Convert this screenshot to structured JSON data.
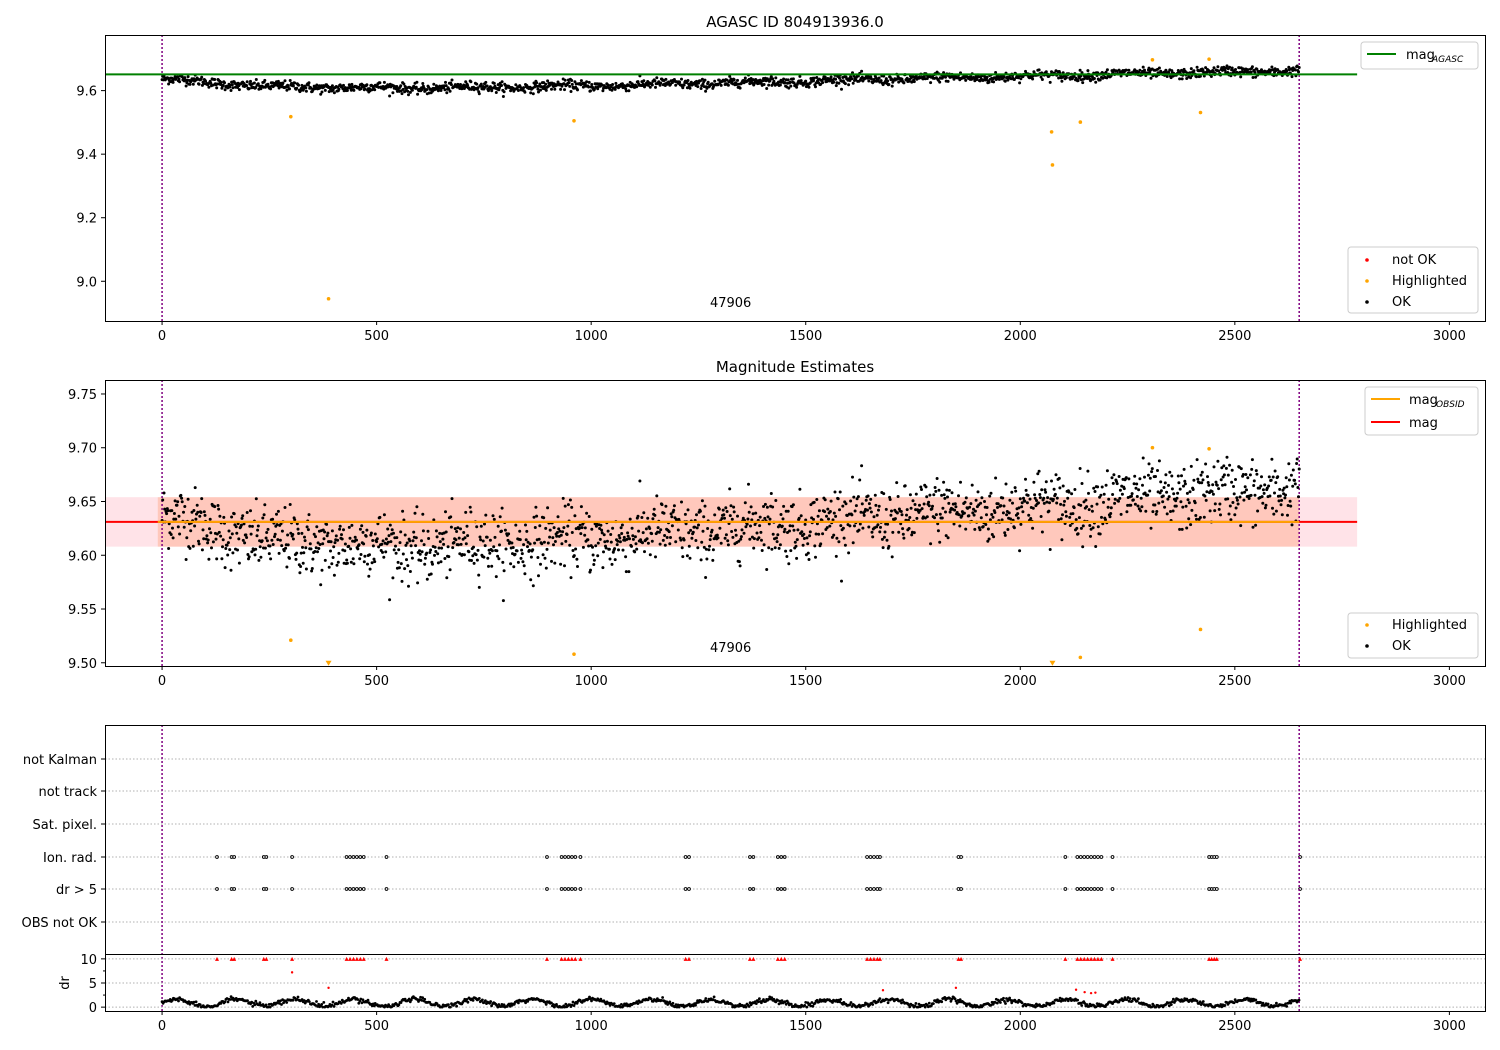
{
  "chart_data": [
    {
      "type": "scatter",
      "title": "AGASC ID 804913936.0",
      "xlim": [
        -133,
        3083
      ],
      "ylim": [
        8.875,
        9.775
      ],
      "xticks": [
        0,
        500,
        1000,
        1500,
        2000,
        2500,
        3000
      ],
      "yticks": [
        9.0,
        9.2,
        9.4,
        9.6
      ],
      "ytick_labels": [
        "9.0",
        "9.2",
        "9.4",
        "9.6"
      ],
      "obsid_annotation": {
        "label": "47906",
        "x": 1325,
        "y": 8.9
      },
      "vlines": [
        0,
        2650
      ],
      "hlines": [
        {
          "name": "mag_AGASC",
          "y": 9.651,
          "x_range": [
            -133,
            2785
          ],
          "color": "#008000"
        }
      ],
      "series": [
        {
          "name": "OK",
          "color": "#000000",
          "model": {
            "x_range": [
              0,
              2650
            ],
            "n": 1750,
            "trend": [
              [
                0,
                9.637
              ],
              [
                250,
                9.612
              ],
              [
                600,
                9.608
              ],
              [
                1000,
                9.615
              ],
              [
                1500,
                9.63
              ],
              [
                2000,
                9.645
              ],
              [
                2650,
                9.663
              ]
            ],
            "scatter": 0.008
          }
        },
        {
          "name": "Highlighted",
          "color": "#ffa500",
          "points": [
            [
              300,
              9.518
            ],
            [
              388,
              8.945
            ],
            [
              960,
              9.505
            ],
            [
              2073,
              9.47
            ],
            [
              2075,
              9.366
            ],
            [
              2140,
              9.501
            ],
            [
              2308,
              9.697
            ],
            [
              2420,
              9.531
            ],
            [
              2440,
              9.699
            ]
          ]
        },
        {
          "name": "not OK",
          "color": "#ff0000",
          "points": []
        }
      ],
      "legend_upper": {
        "position": "upper-right",
        "entries": [
          {
            "label": "mag",
            "sub": "AGASC",
            "color": "#008000"
          }
        ]
      },
      "legend_lower": {
        "position": "lower-right",
        "entries": [
          {
            "label": "not OK",
            "color": "#ff0000"
          },
          {
            "label": "Highlighted",
            "color": "#ffa500"
          },
          {
            "label": "OK",
            "color": "#000000"
          }
        ]
      }
    },
    {
      "type": "scatter",
      "title": "Magnitude Estimates",
      "xlim": [
        -133,
        3083
      ],
      "ylim": [
        9.497,
        9.763
      ],
      "xticks": [
        0,
        500,
        1000,
        1500,
        2000,
        2500,
        3000
      ],
      "yticks": [
        9.5,
        9.55,
        9.6,
        9.65,
        9.7,
        9.75
      ],
      "ytick_labels": [
        "9.50",
        "9.55",
        "9.60",
        "9.65",
        "9.70",
        "9.75"
      ],
      "obsid_annotation": {
        "label": "47906",
        "x": 1325,
        "y": 9.508
      },
      "vlines": [
        0,
        2650
      ],
      "hlines": [
        {
          "name": "mag",
          "y": 9.631,
          "x_range": [
            -133,
            2785
          ],
          "color": "#ff0000"
        },
        {
          "name": "mag_OBSID",
          "y": 9.631,
          "x_range": [
            -10,
            2650
          ],
          "color": "#ffa500"
        }
      ],
      "bands": [
        {
          "y_range": [
            9.608,
            9.654
          ],
          "x_range": [
            -133,
            2785
          ],
          "color": "#ffc0cb",
          "opacity": 0.45
        },
        {
          "y_range": [
            9.608,
            9.654
          ],
          "x_range": [
            -10,
            2650
          ],
          "color": "#ffa07a",
          "opacity": 0.4
        }
      ],
      "series": [
        {
          "name": "OK",
          "color": "#000000",
          "model": {
            "x_range": [
              0,
              2650
            ],
            "n": 1750,
            "trend": [
              [
                0,
                9.637
              ],
              [
                250,
                9.612
              ],
              [
                600,
                9.608
              ],
              [
                1000,
                9.615
              ],
              [
                1500,
                9.63
              ],
              [
                2000,
                9.645
              ],
              [
                2650,
                9.663
              ]
            ],
            "scatter": 0.015
          }
        },
        {
          "name": "Highlighted",
          "color": "#ffa500",
          "points": [
            [
              300,
              9.521
            ],
            [
              960,
              9.508
            ],
            [
              2140,
              9.505
            ],
            [
              2308,
              9.7
            ],
            [
              2420,
              9.531
            ],
            [
              2440,
              9.699
            ]
          ]
        },
        {
          "name": "Highlighted (below range)",
          "color": "#ffa500",
          "marker": "triangle-down",
          "points": [
            [
              388,
              9.5
            ],
            [
              2075,
              9.5
            ]
          ]
        }
      ],
      "legend_upper": {
        "position": "upper-right",
        "entries": [
          {
            "label": "mag",
            "sub": "OBSID",
            "color": "#ffa500"
          },
          {
            "label": "mag",
            "color": "#ff0000"
          }
        ]
      },
      "legend_lower": {
        "position": "lower-right",
        "entries": [
          {
            "label": "Highlighted",
            "color": "#ffa500"
          },
          {
            "label": "OK",
            "color": "#000000"
          }
        ]
      }
    },
    {
      "type": "scatter",
      "title": "",
      "xlim": [
        -133,
        3083
      ],
      "xticks": [
        0,
        500,
        1000,
        1500,
        2000,
        2500,
        3000
      ],
      "flag_rows": [
        "not Kalman",
        "not track",
        "Sat. pixel.",
        "Ion. rad.",
        "dr > 5",
        "OBS not OK"
      ],
      "flag_events": {
        "Ion. rad.": [
          128,
          162,
          168,
          237,
          243,
          303,
          430,
          438,
          446,
          454,
          462,
          470,
          523,
          897,
          931,
          939,
          947,
          955,
          963,
          975,
          1220,
          1228,
          1370,
          1378,
          1435,
          1443,
          1451,
          1643,
          1651,
          1659,
          1667,
          1673,
          1856,
          1862,
          2105,
          2133,
          2141,
          2149,
          2157,
          2165,
          2173,
          2181,
          2189,
          2215,
          2440,
          2446,
          2452,
          2458,
          2652
        ],
        "dr > 5": [
          128,
          162,
          168,
          237,
          243,
          303,
          430,
          438,
          446,
          454,
          462,
          470,
          523,
          897,
          931,
          939,
          947,
          955,
          963,
          975,
          1220,
          1228,
          1370,
          1378,
          1435,
          1443,
          1451,
          1643,
          1651,
          1659,
          1667,
          1673,
          1856,
          1862,
          2105,
          2133,
          2141,
          2149,
          2157,
          2165,
          2173,
          2181,
          2189,
          2215,
          2440,
          2446,
          2452,
          2458,
          2652
        ]
      },
      "dr_panel": {
        "ylabel": "dr",
        "ylim": [
          -0.8,
          10.8
        ],
        "yticks": [
          0,
          5,
          10
        ],
        "clipped_value": 10,
        "outliers": [
          [
            303,
            7.2
          ],
          [
            388,
            4.0
          ],
          [
            1680,
            3.5
          ],
          [
            1850,
            4.0
          ],
          [
            2130,
            3.6
          ],
          [
            2150,
            3.1
          ],
          [
            2165,
            2.9
          ],
          [
            2175,
            3.0
          ]
        ]
      },
      "vlines": [
        0,
        2650
      ]
    }
  ]
}
